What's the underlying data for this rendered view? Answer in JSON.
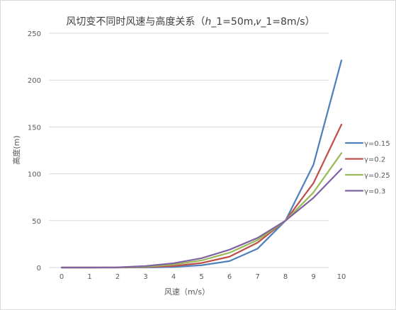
{
  "chart_data": {
    "type": "line",
    "title": "风切变不同时风速与高度关系（ℎ_1=50m,𝑣_1=8m/s）",
    "xlabel": "风速（m/s）",
    "ylabel": "高度(m)",
    "categories": [
      "0",
      "1",
      "2",
      "3",
      "4",
      "5",
      "6",
      "7",
      "8",
      "9",
      "10"
    ],
    "ylim": [
      0,
      250
    ],
    "yticks": [
      0,
      50,
      100,
      150,
      200,
      250
    ],
    "grid": true,
    "legend_position": "right",
    "series": [
      {
        "name": "γ=0.15",
        "color": "#4F81BD",
        "values": [
          0,
          0,
          0,
          0.1,
          0.6,
          2.4,
          6.9,
          20.1,
          50,
          109.8,
          221.1
        ]
      },
      {
        "name": "γ=0.2",
        "color": "#C0504D",
        "values": [
          0,
          0,
          0,
          0.5,
          1.6,
          4.8,
          11.6,
          26.5,
          50,
          90.1,
          152.6
        ]
      },
      {
        "name": "γ=0.25",
        "color": "#9BBB59",
        "values": [
          0,
          0,
          0.1,
          1.0,
          3.1,
          7.6,
          15.8,
          29.3,
          50,
          80.1,
          122.1
        ]
      },
      {
        "name": "γ=0.3",
        "color": "#8064A2",
        "values": [
          0,
          0,
          0.2,
          1.6,
          4.5,
          10.0,
          19.0,
          31.6,
          50,
          74.4,
          105.3
        ]
      }
    ]
  }
}
